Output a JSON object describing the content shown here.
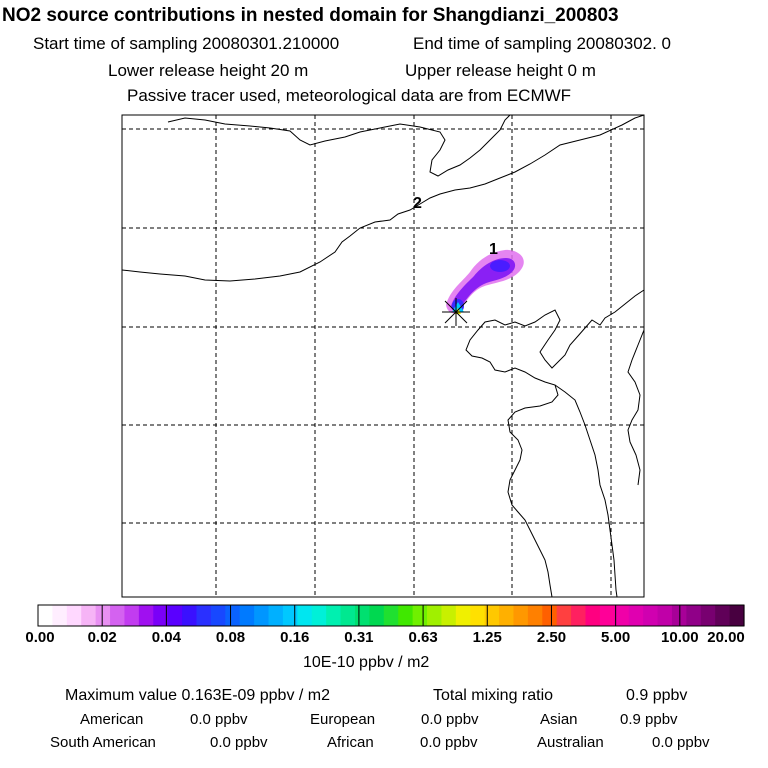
{
  "header": {
    "title": "NO2 source contributions in nested domain for Shangdianzi_200803",
    "start_time": "Start time of sampling 20080301.210000",
    "end_time": "End time of sampling 20080302.     0",
    "lower_release": "Lower release height   20 m",
    "upper_release": "Upper release height    0 m",
    "tracer_note": "Passive tracer used, meteorological data are from ECMWF"
  },
  "map": {
    "labels": [
      "1",
      "2"
    ],
    "station_marker": "station-star-icon",
    "colors": {
      "frame": "#000000",
      "grid": "#000000",
      "coast": "#000000"
    }
  },
  "colorbar": {
    "ticks": [
      "0.00",
      "0.02",
      "0.04",
      "0.08",
      "0.16",
      "0.31",
      "0.63",
      "1.25",
      "2.50",
      "5.00",
      "10.00",
      "20.00"
    ],
    "unit": "10E-10 ppbv / m2",
    "colors": [
      "#ffffff",
      "#ffeeff",
      "#ffd8ff",
      "#f6b4f6",
      "#e890f2",
      "#d462f0",
      "#c23cf0",
      "#a010f0",
      "#7a00f8",
      "#5a00ff",
      "#3a10ff",
      "#2a30ff",
      "#1848ff",
      "#0a62ff",
      "#007aff",
      "#0096ff",
      "#00b0ff",
      "#00c8ff",
      "#00e6f0",
      "#00f0d8",
      "#00f0b0",
      "#00e890",
      "#00e070",
      "#00d850",
      "#20e030",
      "#40e800",
      "#70f000",
      "#a0f000",
      "#c8f000",
      "#f0f000",
      "#ffe000",
      "#ffc800",
      "#ffb000",
      "#ff9800",
      "#ff8000",
      "#ff6000",
      "#ff4040",
      "#ff2060",
      "#ff0080",
      "#ff0098",
      "#f000a8",
      "#e000b0",
      "#d000b0",
      "#c000a8",
      "#a80098",
      "#900088",
      "#780070",
      "#600058",
      "#480040"
    ]
  },
  "stats": {
    "max_label": "Maximum value  0.163E-09 ppbv / m2",
    "total_label": "Total mixing ratio",
    "total_value": "0.9 ppbv",
    "regions": [
      {
        "name": "American",
        "value": "0.0 ppbv"
      },
      {
        "name": "European",
        "value": "0.0 ppbv"
      },
      {
        "name": "Asian",
        "value": "0.9 ppbv"
      },
      {
        "name": "South American",
        "value": "0.0 ppbv"
      },
      {
        "name": "African",
        "value": "0.0 ppbv"
      },
      {
        "name": "Australian",
        "value": "0.0 ppbv"
      }
    ]
  }
}
